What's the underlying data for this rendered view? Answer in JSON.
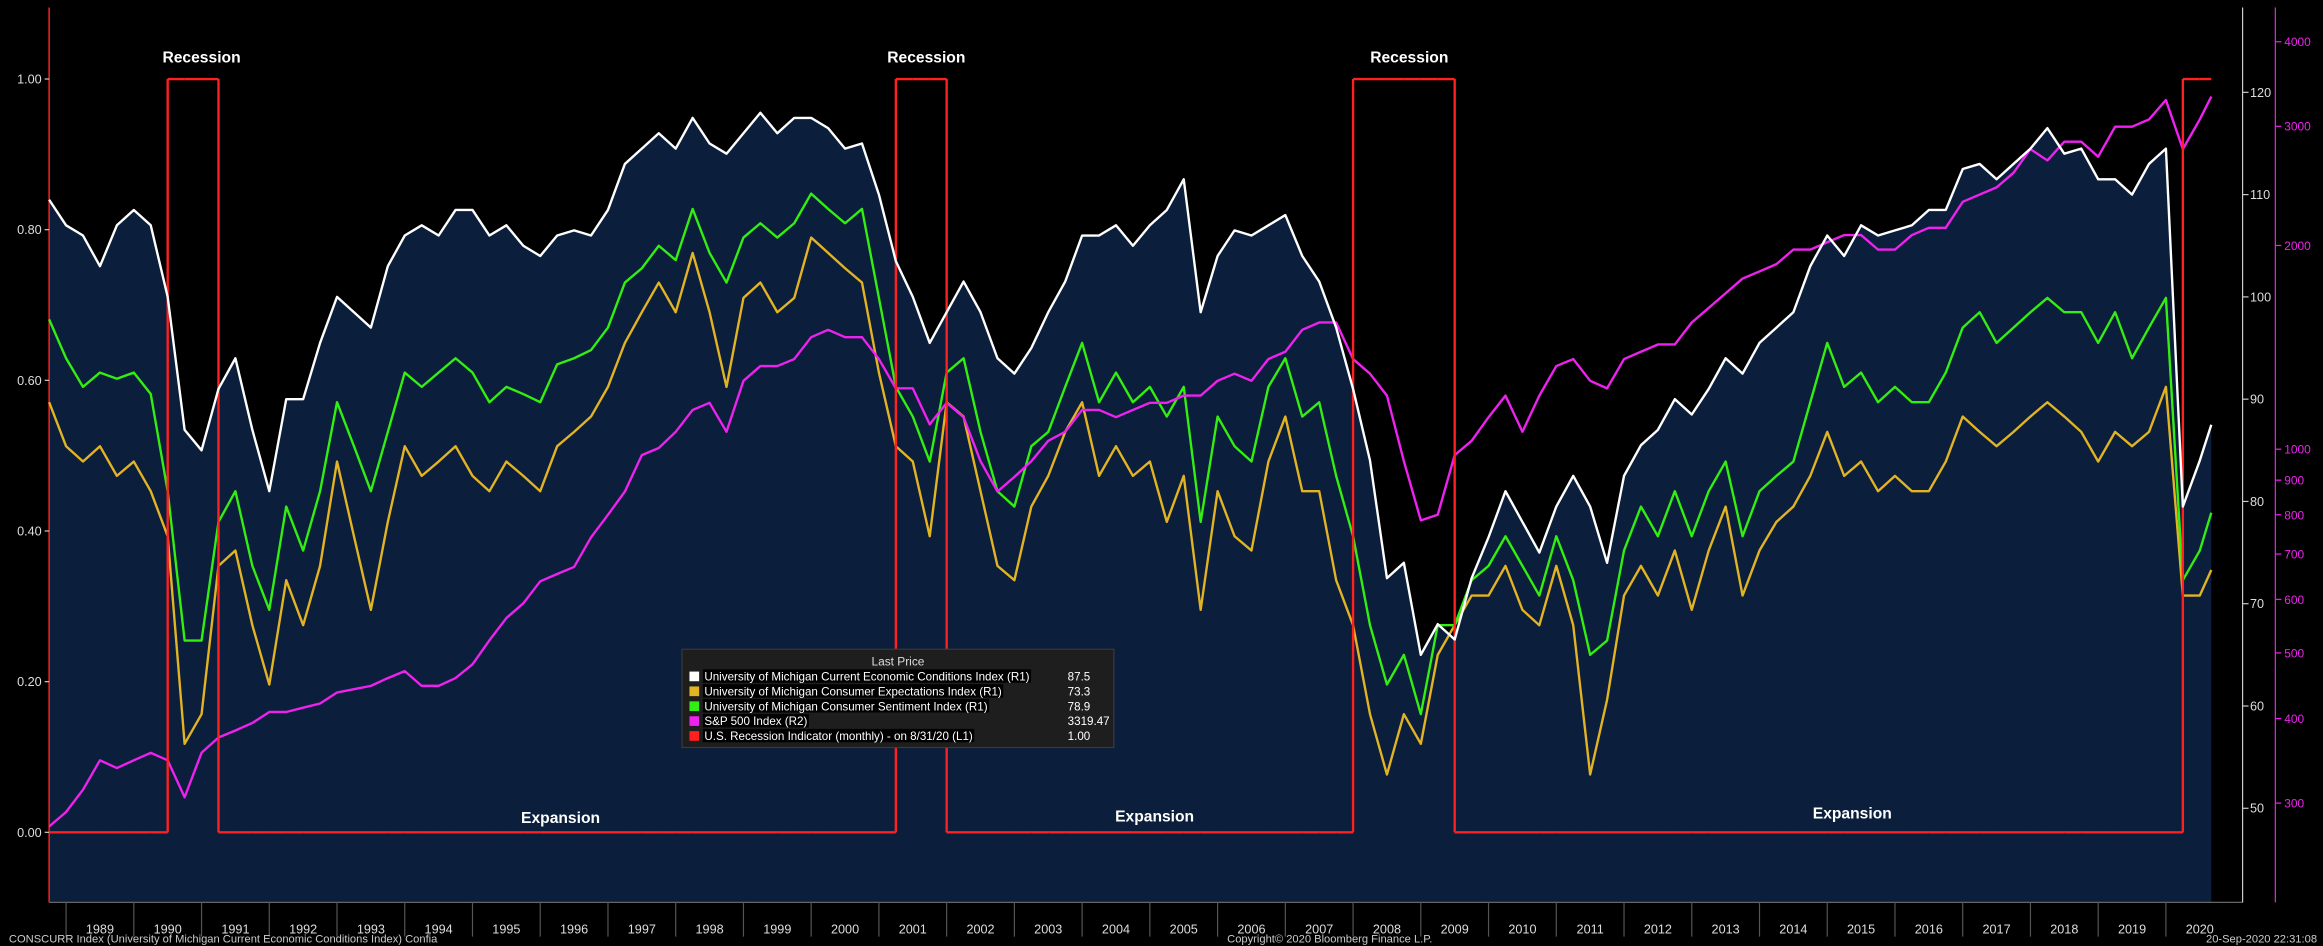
{
  "chart_data": {
    "type": "line",
    "legend_title": "Last Price",
    "xlim": [
      1988.75,
      2021.0
    ],
    "xticks": [
      {
        "value": 1989,
        "label": "1989"
      },
      {
        "value": 1990,
        "label": "1990"
      },
      {
        "value": 1991,
        "label": "1991"
      },
      {
        "value": 1992,
        "label": "1992"
      },
      {
        "value": 1993,
        "label": "1993"
      },
      {
        "value": 1994,
        "label": "1994"
      },
      {
        "value": 1995,
        "label": "1995"
      },
      {
        "value": 1996,
        "label": "1996"
      },
      {
        "value": 1997,
        "label": "1997"
      },
      {
        "value": 1998,
        "label": "1998"
      },
      {
        "value": 1999,
        "label": "1999"
      },
      {
        "value": 2000,
        "label": "2000"
      },
      {
        "value": 2001,
        "label": "2001"
      },
      {
        "value": 2002,
        "label": "2002"
      },
      {
        "value": 2003,
        "label": "2003"
      },
      {
        "value": 2004,
        "label": "2004"
      },
      {
        "value": 2005,
        "label": "2005"
      },
      {
        "value": 2006,
        "label": "2006"
      },
      {
        "value": 2007,
        "label": "2007"
      },
      {
        "value": 2008,
        "label": "2008"
      },
      {
        "value": 2009,
        "label": "2009"
      },
      {
        "value": 2010,
        "label": "2010"
      },
      {
        "value": 2011,
        "label": "2011"
      },
      {
        "value": 2012,
        "label": "2012"
      },
      {
        "value": 2013,
        "label": "2013"
      },
      {
        "value": 2014,
        "label": "2014"
      },
      {
        "value": 2015,
        "label": "2015"
      },
      {
        "value": 2016,
        "label": "2016"
      },
      {
        "value": 2017,
        "label": "2017"
      },
      {
        "value": 2018,
        "label": "2018"
      },
      {
        "value": 2019,
        "label": "2019"
      },
      {
        "value": 2020,
        "label": "2020"
      }
    ],
    "ylim": [
      -0.093,
      1.095
    ],
    "yticks": [
      {
        "value": 0,
        "label": "0.00"
      },
      {
        "value": 0.2,
        "label": "0.20"
      },
      {
        "value": 0.4,
        "label": "0.40"
      },
      {
        "value": 0.6,
        "label": "0.60"
      },
      {
        "value": 0.8,
        "label": "0.80"
      },
      {
        "value": 1,
        "label": "1.00"
      }
    ],
    "y2lim": [
      40.8,
      128.3
    ],
    "y2ticks": [
      50,
      60,
      70,
      80,
      90,
      100,
      110,
      120
    ],
    "y3lim": [
      214,
      4495
    ],
    "y3scale": "log",
    "y3ticks": [
      300,
      400,
      500,
      600,
      700,
      800,
      900,
      1000,
      2000,
      3000,
      4000
    ],
    "x": [
      1988.75,
      1989,
      1989.25,
      1989.5,
      1989.75,
      1990,
      1990.25,
      1990.5,
      1990.75,
      1991,
      1991.25,
      1991.5,
      1991.75,
      1992,
      1992.25,
      1992.5,
      1992.75,
      1993,
      1993.25,
      1993.5,
      1993.75,
      1994,
      1994.25,
      1994.5,
      1994.75,
      1995,
      1995.25,
      1995.5,
      1995.75,
      1996,
      1996.25,
      1996.5,
      1996.75,
      1997,
      1997.25,
      1997.5,
      1997.75,
      1998,
      1998.25,
      1998.5,
      1998.75,
      1999,
      1999.25,
      1999.5,
      1999.75,
      2000,
      2000.25,
      2000.5,
      2000.75,
      2001,
      2001.25,
      2001.5,
      2001.75,
      2002,
      2002.25,
      2002.5,
      2002.75,
      2003,
      2003.25,
      2003.5,
      2003.75,
      2004,
      2004.25,
      2004.5,
      2004.75,
      2005,
      2005.25,
      2005.5,
      2005.75,
      2006,
      2006.25,
      2006.5,
      2006.75,
      2007,
      2007.25,
      2007.5,
      2007.75,
      2008,
      2008.25,
      2008.5,
      2008.75,
      2009,
      2009.25,
      2009.5,
      2009.75,
      2010,
      2010.25,
      2010.5,
      2010.75,
      2011,
      2011.25,
      2011.5,
      2011.75,
      2012,
      2012.25,
      2012.5,
      2012.75,
      2013,
      2013.25,
      2013.5,
      2013.75,
      2014,
      2014.25,
      2014.5,
      2014.75,
      2015,
      2015.25,
      2015.5,
      2015.75,
      2016,
      2016.25,
      2016.5,
      2016.75,
      2017,
      2017.25,
      2017.5,
      2017.75,
      2018,
      2018.25,
      2018.5,
      2018.75,
      2019,
      2019.25,
      2019.5,
      2019.75,
      2020,
      2020.25,
      2020.5,
      2020.67
    ],
    "series": [
      {
        "name": "University of Michigan Current Economic Conditions Index  (R1)",
        "color": "#ffffff",
        "fill": "#0b1e3b",
        "axis": "y2",
        "last_label": "87.5",
        "values": [
          109.5,
          107,
          106,
          103,
          107,
          108.5,
          107,
          100,
          87,
          85,
          91,
          94,
          87,
          81,
          90,
          90,
          95.5,
          100,
          98.5,
          97,
          103,
          106,
          107,
          106,
          108.5,
          108.5,
          106,
          107,
          105,
          104,
          106,
          106.5,
          106,
          108.5,
          113,
          114.5,
          116,
          114.5,
          117.5,
          115,
          114,
          116,
          118,
          116,
          117.5,
          117.5,
          116.5,
          114.5,
          115,
          110,
          103.5,
          100,
          95.5,
          98.5,
          101.5,
          98.5,
          94,
          92.5,
          95,
          98.5,
          101.5,
          106,
          106,
          107,
          105,
          107,
          108.5,
          111.5,
          98.5,
          104,
          106.5,
          106,
          107,
          108,
          104,
          101.5,
          97,
          91,
          84,
          72.5,
          74,
          65,
          68,
          66.5,
          72.5,
          76.5,
          81,
          78,
          75,
          79.5,
          82.5,
          79.5,
          74,
          82.5,
          85.5,
          87,
          90,
          88.5,
          91,
          94,
          92.5,
          95.5,
          97,
          98.5,
          103,
          106,
          104,
          107,
          106,
          106.5,
          107,
          108.5,
          108.5,
          112.5,
          113,
          111.5,
          113,
          114.5,
          116.5,
          114,
          114.5,
          111.5,
          111.5,
          110,
          113,
          114.5,
          79.5,
          84,
          87.5
        ]
      },
      {
        "name": "University of Michigan Consumer Expectations Index  (R1)",
        "color": "#e2b423",
        "axis": "y2",
        "last_label": "73.3",
        "values": [
          89.7,
          85.4,
          83.9,
          85.4,
          82.5,
          83.9,
          81,
          76.6,
          56.3,
          59.2,
          73.7,
          75.2,
          67.9,
          62.1,
          72.3,
          67.9,
          73.7,
          83.9,
          76.6,
          69.4,
          78,
          85.4,
          82.5,
          83.9,
          85.4,
          82.5,
          81,
          83.9,
          82.5,
          81,
          85.4,
          86.8,
          88.3,
          91.2,
          95.5,
          98.5,
          101.4,
          98.5,
          104.3,
          98.5,
          91.2,
          99.9,
          101.4,
          98.5,
          99.9,
          105.8,
          104.3,
          102.8,
          101.4,
          92.6,
          85.4,
          83.9,
          76.6,
          89.7,
          88.3,
          81,
          73.7,
          72.3,
          79.5,
          82.5,
          86.8,
          89.7,
          82.5,
          85.4,
          82.5,
          83.9,
          78,
          82.5,
          69.4,
          81,
          76.6,
          75.2,
          83.9,
          88.3,
          81,
          81,
          72.3,
          67.9,
          59.2,
          53.3,
          59.2,
          56.3,
          65,
          67.9,
          70.8,
          70.8,
          73.7,
          69.4,
          67.9,
          73.7,
          67.9,
          53.3,
          60.6,
          70.8,
          73.7,
          70.8,
          75.2,
          69.4,
          75.2,
          79.5,
          70.8,
          75.2,
          78,
          79.5,
          82.5,
          86.8,
          82.5,
          83.9,
          81,
          82.5,
          81,
          81,
          83.9,
          88.3,
          86.8,
          85.4,
          86.8,
          88.3,
          89.7,
          88.3,
          86.8,
          83.9,
          86.8,
          85.4,
          86.8,
          91.2,
          70.8,
          70.8,
          73.3
        ]
      },
      {
        "name": "University of Michigan Consumer Sentiment Index  (R1)",
        "color": "#33ee11",
        "axis": "y2",
        "last_label": "78.9",
        "values": [
          97.8,
          94,
          91.2,
          92.6,
          92,
          92.6,
          90.5,
          81,
          66.4,
          66.4,
          78,
          81,
          73.7,
          69.4,
          79.5,
          75.2,
          81,
          89.7,
          85.4,
          81,
          86.8,
          92.6,
          91.2,
          92.6,
          94,
          92.6,
          89.7,
          91.2,
          90.5,
          89.7,
          93.4,
          94,
          94.8,
          97,
          101.4,
          102.8,
          105,
          103.6,
          108.6,
          104.3,
          101.4,
          105.8,
          107.2,
          105.8,
          107.2,
          110.1,
          108.6,
          107.2,
          108.6,
          99.9,
          91.2,
          88.3,
          83.9,
          92.6,
          94,
          86.8,
          81,
          79.5,
          85.4,
          86.8,
          91.2,
          95.5,
          89.7,
          92.6,
          89.7,
          91.2,
          88.3,
          91.2,
          78,
          88.3,
          85.4,
          83.9,
          91.2,
          94,
          88.3,
          89.7,
          82.5,
          76.6,
          67.9,
          62.1,
          65,
          59.2,
          67.9,
          67.9,
          72.3,
          73.7,
          76.6,
          73.7,
          70.8,
          76.6,
          72.3,
          65,
          66.4,
          75.2,
          79.5,
          76.6,
          81,
          76.6,
          81,
          83.9,
          76.6,
          81,
          82.5,
          83.9,
          89.7,
          95.5,
          91.2,
          92.6,
          89.7,
          91.2,
          89.7,
          89.7,
          92.6,
          97,
          98.5,
          95.5,
          97,
          98.5,
          99.9,
          98.5,
          98.5,
          95.5,
          98.5,
          94,
          97,
          99.9,
          72.3,
          75.2,
          78.9
        ]
      },
      {
        "name": "S&P 500 Index  (R2)",
        "color": "#ee22ee",
        "axis": "y3",
        "last_label": "3319.47",
        "values": [
          277,
          291,
          314,
          347,
          338,
          347,
          356,
          347,
          306,
          356,
          375,
          384,
          394,
          409,
          409,
          415,
          421,
          437,
          442,
          447,
          459,
          470,
          447,
          447,
          459,
          481,
          522,
          563,
          592,
          638,
          654,
          670,
          741,
          800,
          866,
          980,
          1004,
          1061,
          1143,
          1171,
          1061,
          1262,
          1327,
          1327,
          1359,
          1464,
          1501,
          1464,
          1464,
          1359,
          1230,
          1230,
          1088,
          1171,
          1115,
          960,
          866,
          910,
          960,
          1029,
          1061,
          1143,
          1143,
          1115,
          1143,
          1171,
          1171,
          1200,
          1200,
          1262,
          1293,
          1262,
          1359,
          1393,
          1501,
          1539,
          1539,
          1359,
          1293,
          1200,
          960,
          785,
          800,
          980,
          1029,
          1115,
          1200,
          1061,
          1200,
          1327,
          1359,
          1262,
          1230,
          1359,
          1393,
          1428,
          1428,
          1539,
          1617,
          1700,
          1787,
          1831,
          1877,
          1972,
          1972,
          2022,
          2072,
          2072,
          1972,
          1972,
          2072,
          2124,
          2124,
          2320,
          2378,
          2437,
          2561,
          2776,
          2671,
          2847,
          2847,
          2705,
          2996,
          2996,
          3071,
          3280,
          2776,
          3071,
          3319.47
        ]
      },
      {
        "name": "U.S. Recession Indicator (monthly)  - on 8/31/20  (L1)",
        "color": "#ff2020",
        "axis": "y",
        "style": "step",
        "last_label": "1.00",
        "values": [
          0,
          0,
          0,
          0,
          0,
          0,
          0,
          1,
          1,
          1,
          0,
          0,
          0,
          0,
          0,
          0,
          0,
          0,
          0,
          0,
          0,
          0,
          0,
          0,
          0,
          0,
          0,
          0,
          0,
          0,
          0,
          0,
          0,
          0,
          0,
          0,
          0,
          0,
          0,
          0,
          0,
          0,
          0,
          0,
          0,
          0,
          0,
          0,
          0,
          0,
          1,
          1,
          1,
          0,
          0,
          0,
          0,
          0,
          0,
          0,
          0,
          0,
          0,
          0,
          0,
          0,
          0,
          0,
          0,
          0,
          0,
          0,
          0,
          0,
          0,
          0,
          0,
          1,
          1,
          1,
          1,
          1,
          1,
          0,
          0,
          0,
          0,
          0,
          0,
          0,
          0,
          0,
          0,
          0,
          0,
          0,
          0,
          0,
          0,
          0,
          0,
          0,
          0,
          0,
          0,
          0,
          0,
          0,
          0,
          0,
          0,
          0,
          0,
          0,
          0,
          0,
          0,
          0,
          0,
          0,
          0,
          0,
          0,
          0,
          0,
          0,
          1,
          1,
          1
        ]
      }
    ],
    "annotations": [
      {
        "text": "Recession",
        "x": 1991.0,
        "y": 1.03
      },
      {
        "text": "Recession",
        "x": 2001.7,
        "y": 1.03
      },
      {
        "text": "Recession",
        "x": 2008.83,
        "y": 1.03
      },
      {
        "text": "Expansion",
        "x": 1996.3,
        "y": 0.02
      },
      {
        "text": "Expansion",
        "x": 2005.07,
        "y": 0.022
      },
      {
        "text": "Expansion",
        "x": 2015.37,
        "y": 0.026
      }
    ]
  },
  "footer": {
    "left": "CONSCURR Index (University of Michigan Current Economic Conditions Index) Confia",
    "center": "Copyright© 2020 Bloomberg Finance L.P.",
    "right": "20-Sep-2020 22:31:08"
  }
}
